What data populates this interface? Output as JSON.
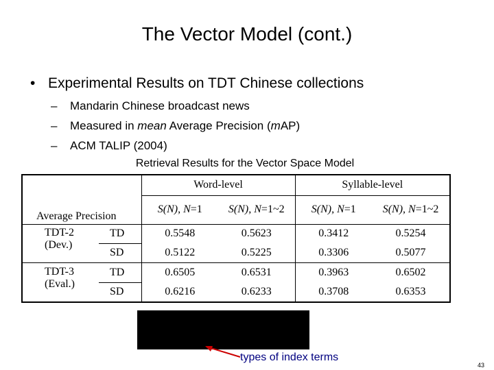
{
  "slide": {
    "title": "The Vector Model (cont.)",
    "bullet_symbol": "•",
    "bullet": "Experimental Results on TDT Chinese collections",
    "sub_symbol": "–",
    "sub_bullets": [
      "Mandarin Chinese broadcast news",
      "ACM TALIP (2004)"
    ],
    "measured_prefix": "Measured in ",
    "measured_mean": "mean",
    "measured_middle": " Average Precision (",
    "measured_m": "m",
    "measured_suffix": "AP)",
    "annotation": "types of index terms",
    "annotation_color": "#000080",
    "page_number": "43"
  },
  "table": {
    "caption": "Retrieval Results for the Vector Space Model",
    "corner_label": "Average Precision",
    "groups": [
      "Word-level",
      "Syllable-level"
    ],
    "col_heads": [
      {
        "s": "S(N), ",
        "n": "N",
        "rest": "=1"
      },
      {
        "s": "S(N), ",
        "n": "N",
        "rest": "=1~2"
      },
      {
        "s": "S(N), ",
        "n": "N",
        "rest": "=1"
      },
      {
        "s": "S(N), ",
        "n": "N",
        "rest": "=1~2"
      }
    ],
    "collections": [
      {
        "name_line1": "TDT-2",
        "name_line2": "(Dev.)",
        "rows": [
          {
            "label": "TD",
            "values": [
              "0.5548",
              "0.5623",
              "0.3412",
              "0.5254"
            ]
          },
          {
            "label": "SD",
            "values": [
              "0.5122",
              "0.5225",
              "0.3306",
              "0.5077"
            ]
          }
        ]
      },
      {
        "name_line1": "TDT-3",
        "name_line2": "(Eval.)",
        "rows": [
          {
            "label": "TD",
            "values": [
              "0.6505",
              "0.6531",
              "0.3963",
              "0.6502"
            ]
          },
          {
            "label": "SD",
            "values": [
              "0.6216",
              "0.6233",
              "0.3708",
              "0.6353"
            ]
          }
        ]
      }
    ]
  }
}
